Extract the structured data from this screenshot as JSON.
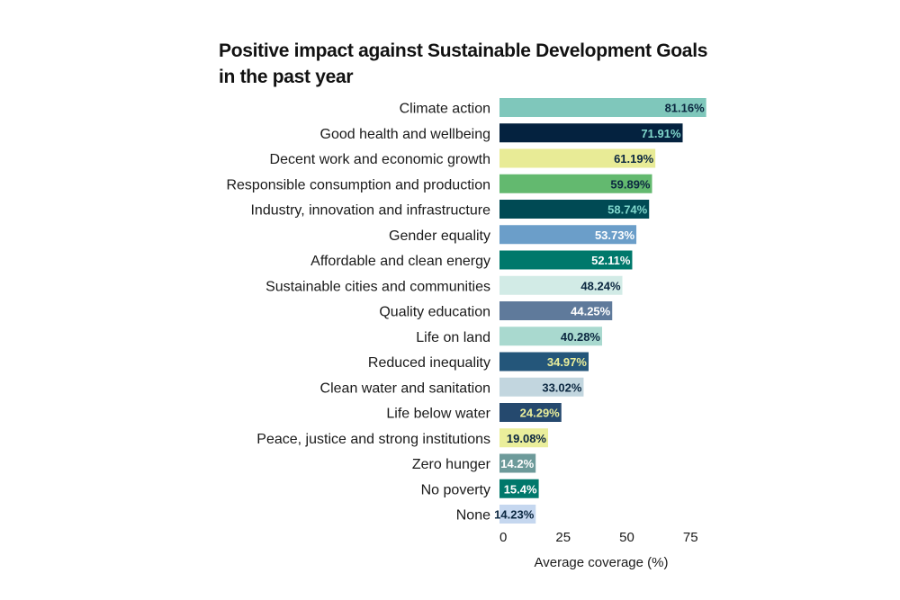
{
  "chart_data": {
    "type": "bar",
    "orientation": "horizontal",
    "title_lines": [
      "Positive impact against Sustainable Development Goals",
      "in the past year"
    ],
    "categories": [
      "Climate action",
      "Good health and wellbeing",
      "Decent work and economic growth",
      "Responsible consumption and production",
      "Industry, innovation and infrastructure",
      "Gender equality",
      "Affordable and clean energy",
      "Sustainable cities and communities",
      "Quality education",
      "Life on land",
      "Reduced inequality",
      "Clean water and sanitation",
      "Life below water",
      "Peace, justice and strong institutions",
      "Zero hunger",
      "No poverty",
      "None"
    ],
    "values": [
      81.16,
      71.91,
      61.19,
      59.89,
      58.74,
      53.73,
      52.11,
      48.24,
      44.25,
      40.28,
      34.97,
      33.02,
      24.29,
      19.08,
      14.2,
      15.4,
      14.23
    ],
    "value_labels": [
      "81.16%",
      "71.91%",
      "61.19%",
      "59.89%",
      "58.74%",
      "53.73%",
      "52.11%",
      "48.24%",
      "44.25%",
      "40.28%",
      "34.97%",
      "33.02%",
      "24.29%",
      "19.08%",
      "14.2%",
      "15.4%",
      "14.23%"
    ],
    "bar_colors": [
      "#7fc7bb",
      "#04223f",
      "#e8eb96",
      "#63b96f",
      "#004a54",
      "#6b9ec9",
      "#00786b",
      "#d2ebe6",
      "#5f7a9b",
      "#a9d9cf",
      "#24567a",
      "#c2d6df",
      "#25496e",
      "#eaee9b",
      "#6d9a9a",
      "#00786b",
      "#c5d7ef"
    ],
    "label_colors": [
      "#0b2740",
      "#7fd6cb",
      "#0b2740",
      "#0b2740",
      "#7fd6cb",
      "#ffffff",
      "#ffffff",
      "#0b2740",
      "#ffffff",
      "#0b2740",
      "#eaee9b",
      "#0b2740",
      "#eaee9b",
      "#0b2740",
      "#ffffff",
      "#ffffff",
      "#0b2740"
    ],
    "xlabel": "Average coverage  (%)",
    "xticks": [
      0,
      25,
      50,
      75
    ],
    "xtick_labels": [
      "0",
      "25",
      "50",
      "75"
    ],
    "xlim": [
      0,
      85
    ],
    "grid": false
  }
}
